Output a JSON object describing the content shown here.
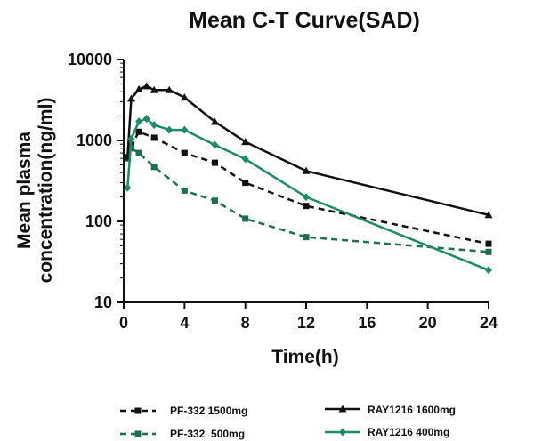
{
  "chart_data": {
    "type": "line",
    "title": "Mean C-T Curve(SAD)",
    "xlabel": "Time(h)",
    "ylabel_line1": "Mean plasma",
    "ylabel_line2": "concentration(ng/ml)",
    "x_scale": "linear",
    "y_scale": "log",
    "xlim": [
      0,
      24
    ],
    "ylim": [
      10,
      10000
    ],
    "x_ticks": [
      0,
      4,
      8,
      12,
      16,
      20,
      24
    ],
    "x_tick_labels": [
      "0",
      "4",
      "8",
      "12",
      "16",
      "20",
      "24"
    ],
    "y_ticks": [
      10,
      100,
      1000,
      10000
    ],
    "y_tick_labels": [
      "10",
      "100",
      "1000",
      "10000"
    ],
    "grid": false,
    "legend_position": "bottom",
    "series": [
      {
        "name": "PF-332 1500mg",
        "color": "#111111",
        "line_style": "dashed",
        "marker": "square",
        "x": [
          0.25,
          0.5,
          1,
          2,
          4,
          6,
          8,
          12,
          24
        ],
        "y": [
          620,
          850,
          1280,
          1080,
          700,
          530,
          300,
          155,
          53
        ]
      },
      {
        "name": "PF-332  500mg",
        "color": "#1f6f4f",
        "line_style": "dashed",
        "marker": "square",
        "x": [
          0.25,
          0.5,
          1,
          2,
          4,
          6,
          8,
          12,
          24
        ],
        "y": [
          600,
          800,
          700,
          470,
          240,
          180,
          108,
          64,
          42
        ]
      },
      {
        "name": "RAY1216 1600mg",
        "color": "#111111",
        "line_style": "solid",
        "marker": "triangle",
        "x": [
          0.25,
          0.5,
          1,
          1.5,
          2,
          3,
          4,
          6,
          8,
          12,
          24
        ],
        "y": [
          620,
          3300,
          4300,
          4700,
          4200,
          4200,
          3400,
          1700,
          960,
          420,
          120
        ]
      },
      {
        "name": "RAY1216 400mg",
        "color": "#1f8a6a",
        "line_style": "solid",
        "marker": "diamond",
        "x": [
          0.25,
          0.5,
          1,
          1.5,
          2,
          3,
          4,
          6,
          8,
          12,
          24
        ],
        "y": [
          260,
          1050,
          1720,
          1850,
          1550,
          1350,
          1350,
          880,
          590,
          200,
          25
        ]
      }
    ]
  }
}
